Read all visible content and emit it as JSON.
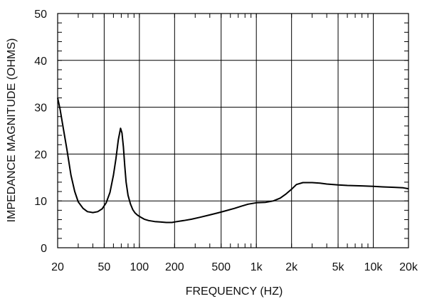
{
  "chart_data": {
    "type": "line",
    "xlabel": "FREQUENCY  (HZ)",
    "ylabel": "IMPEDANCE MAGNITUDE  (OHMS)",
    "xscale": "log",
    "xlim": [
      20,
      20000
    ],
    "ylim": [
      0,
      50
    ],
    "grid": true,
    "x_ticks": [
      20,
      50,
      100,
      200,
      500,
      1000,
      2000,
      5000,
      10000,
      20000
    ],
    "x_tick_labels": [
      "20",
      "50",
      "100",
      "200",
      "500",
      "1k",
      "2k",
      "5k",
      "10k",
      "20k"
    ],
    "y_ticks": [
      0,
      10,
      20,
      30,
      40,
      50
    ],
    "y_tick_labels": [
      "0",
      "10",
      "20",
      "30",
      "40",
      "50"
    ],
    "series": [
      {
        "x": [
          20,
          21,
          22,
          24,
          26,
          28,
          30,
          33,
          36,
          40,
          44,
          48,
          52,
          56,
          60,
          63,
          66,
          69,
          71,
          73,
          75,
          77,
          80,
          84,
          88,
          92,
          97,
          103,
          110,
          120,
          135,
          150,
          170,
          190,
          210,
          240,
          280,
          330,
          400,
          480,
          550,
          650,
          750,
          850,
          1000,
          1200,
          1400,
          1600,
          1800,
          2000,
          2200,
          2500,
          3000,
          3500,
          4000,
          5000,
          6000,
          8000,
          10000,
          12000,
          15000,
          18000,
          20000
        ],
        "y": [
          32,
          29.5,
          26.5,
          21,
          15.5,
          12,
          9.8,
          8.4,
          7.7,
          7.5,
          7.7,
          8.3,
          9.6,
          11.8,
          15.5,
          19,
          23,
          25.5,
          24.5,
          21.5,
          17.5,
          14,
          11.2,
          9.3,
          8.1,
          7.4,
          6.9,
          6.5,
          6.1,
          5.8,
          5.6,
          5.5,
          5.4,
          5.4,
          5.6,
          5.8,
          6.1,
          6.5,
          7.0,
          7.5,
          7.9,
          8.4,
          8.9,
          9.3,
          9.6,
          9.7,
          10.0,
          10.6,
          11.5,
          12.5,
          13.5,
          13.9,
          13.9,
          13.8,
          13.6,
          13.4,
          13.3,
          13.2,
          13.1,
          13.0,
          12.9,
          12.8,
          12.6
        ]
      }
    ]
  }
}
